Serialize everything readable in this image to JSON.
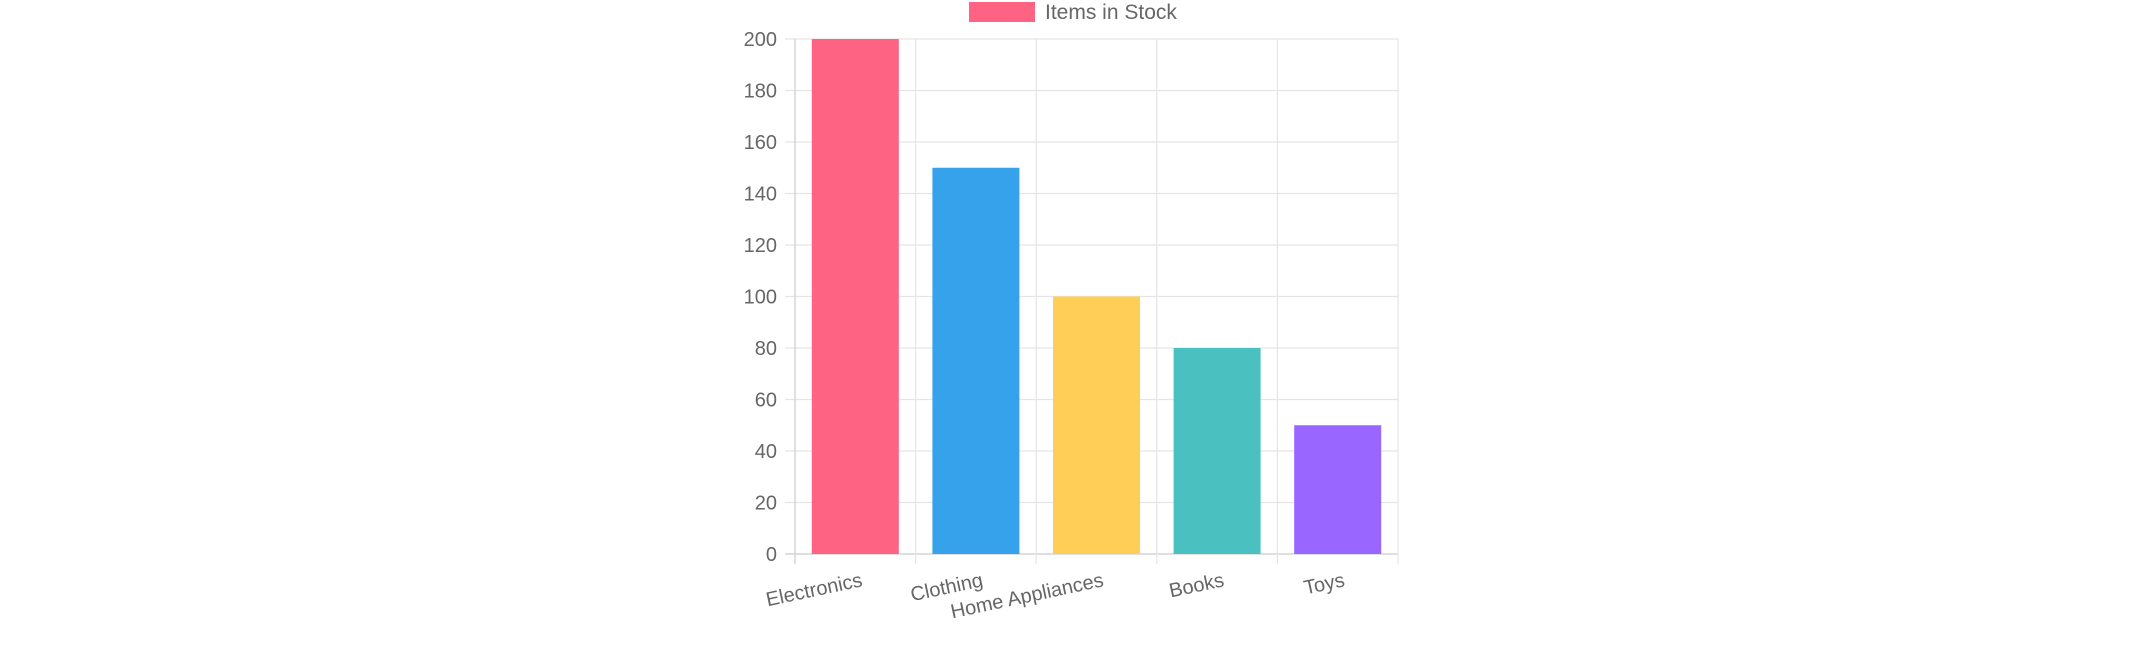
{
  "chart_data": {
    "type": "bar",
    "categories": [
      "Electronics",
      "Clothing",
      "Home Appliances",
      "Books",
      "Toys"
    ],
    "series": [
      {
        "name": "Items in Stock",
        "values": [
          200,
          150,
          100,
          80,
          50
        ]
      }
    ],
    "bar_colors": [
      "#ff6384",
      "#36a2eb",
      "#ffce56",
      "#4bc0c0",
      "#9966ff"
    ],
    "legend_color": "#ff6384",
    "y_ticks": [
      0,
      20,
      40,
      60,
      80,
      100,
      120,
      140,
      160,
      180,
      200
    ],
    "ylim": [
      0,
      200
    ],
    "grid": true,
    "legend_position": "top",
    "title": "",
    "xlabel": "",
    "ylabel": ""
  }
}
